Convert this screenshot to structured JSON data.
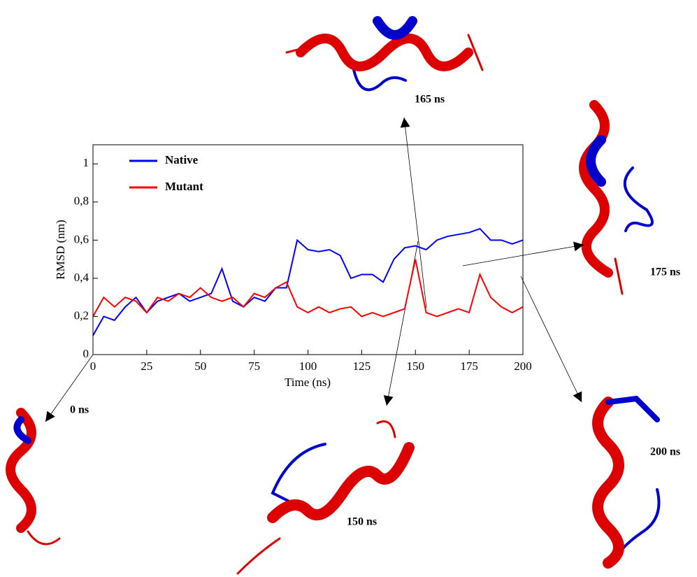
{
  "chart_data": {
    "type": "line",
    "x_label": "Time (ns)",
    "y_label": "RMSD (nm)",
    "x": [
      0,
      5,
      10,
      15,
      20,
      25,
      30,
      35,
      40,
      45,
      50,
      55,
      60,
      65,
      70,
      75,
      80,
      85,
      90,
      95,
      100,
      105,
      110,
      115,
      120,
      125,
      130,
      135,
      140,
      145,
      150,
      155,
      160,
      165,
      170,
      175,
      180,
      185,
      190,
      195,
      200
    ],
    "series": [
      {
        "name": "Native",
        "color": "#0000ff",
        "values": [
          0.1,
          0.2,
          0.18,
          0.25,
          0.3,
          0.22,
          0.28,
          0.3,
          0.32,
          0.28,
          0.3,
          0.32,
          0.45,
          0.28,
          0.25,
          0.3,
          0.28,
          0.35,
          0.35,
          0.6,
          0.55,
          0.54,
          0.55,
          0.52,
          0.4,
          0.42,
          0.42,
          0.38,
          0.5,
          0.56,
          0.57,
          0.55,
          0.6,
          0.62,
          0.63,
          0.64,
          0.66,
          0.6,
          0.6,
          0.58,
          0.6
        ]
      },
      {
        "name": "Mutant",
        "color": "#ff0000",
        "values": [
          0.2,
          0.3,
          0.25,
          0.3,
          0.28,
          0.22,
          0.3,
          0.28,
          0.32,
          0.3,
          0.35,
          0.3,
          0.28,
          0.3,
          0.25,
          0.32,
          0.3,
          0.35,
          0.38,
          0.25,
          0.22,
          0.25,
          0.22,
          0.24,
          0.25,
          0.2,
          0.22,
          0.2,
          0.22,
          0.24,
          0.5,
          0.22,
          0.2,
          0.22,
          0.24,
          0.22,
          0.42,
          0.3,
          0.25,
          0.22,
          0.25
        ]
      }
    ],
    "xlim": [
      0,
      200
    ],
    "xticks": [
      0,
      25,
      50,
      75,
      100,
      125,
      150,
      175,
      200
    ],
    "ylim": [
      0,
      1.1
    ],
    "yticks": [
      0,
      {
        "value": 0.2,
        "label": "0,2"
      },
      {
        "value": 0.4,
        "label": "0,4"
      },
      {
        "value": 0.6,
        "label": "0,6"
      },
      {
        "value": 0.8,
        "label": "0,8"
      },
      1
    ],
    "annotations": [
      "0 ns",
      "150 ns",
      "165 ns",
      "175 ns",
      "200 ns"
    ]
  }
}
